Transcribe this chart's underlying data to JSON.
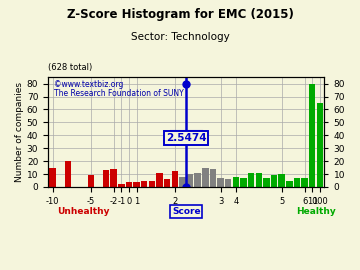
{
  "title": "Z-Score Histogram for EMC (2015)",
  "subtitle": "Sector: Technology",
  "xlabel_score": "Score",
  "ylabel": "Number of companies",
  "total": "628 total",
  "zscore_label": "2.5474",
  "zscore_idx": 17.5,
  "yticks": [
    0,
    10,
    20,
    30,
    40,
    50,
    60,
    70,
    80
  ],
  "xtick_labels": [
    "-10",
    "-5",
    "-2",
    "-1",
    "0",
    "1",
    "2",
    "3",
    "4",
    "5",
    "6",
    "10",
    "100"
  ],
  "unhealthy_label": "Unhealthy",
  "healthy_label": "Healthy",
  "bars": [
    {
      "idx": 0,
      "height": 15,
      "color": "#cc0000"
    },
    {
      "idx": 1,
      "height": 0,
      "color": "#cc0000"
    },
    {
      "idx": 2,
      "height": 20,
      "color": "#cc0000"
    },
    {
      "idx": 3,
      "height": 0,
      "color": "#cc0000"
    },
    {
      "idx": 4,
      "height": 0,
      "color": "#cc0000"
    },
    {
      "idx": 5,
      "height": 9,
      "color": "#cc0000"
    },
    {
      "idx": 6,
      "height": 0,
      "color": "#cc0000"
    },
    {
      "idx": 7,
      "height": 13,
      "color": "#cc0000"
    },
    {
      "idx": 8,
      "height": 14,
      "color": "#cc0000"
    },
    {
      "idx": 9,
      "height": 2,
      "color": "#cc0000"
    },
    {
      "idx": 10,
      "height": 4,
      "color": "#cc0000"
    },
    {
      "idx": 11,
      "height": 4,
      "color": "#cc0000"
    },
    {
      "idx": 12,
      "height": 5,
      "color": "#cc0000"
    },
    {
      "idx": 13,
      "height": 5,
      "color": "#cc0000"
    },
    {
      "idx": 14,
      "height": 11,
      "color": "#cc0000"
    },
    {
      "idx": 15,
      "height": 6,
      "color": "#cc0000"
    },
    {
      "idx": 16,
      "height": 12,
      "color": "#cc0000"
    },
    {
      "idx": 17,
      "height": 8,
      "color": "#808080"
    },
    {
      "idx": 18,
      "height": 10,
      "color": "#808080"
    },
    {
      "idx": 19,
      "height": 11,
      "color": "#808080"
    },
    {
      "idx": 20,
      "height": 15,
      "color": "#808080"
    },
    {
      "idx": 21,
      "height": 14,
      "color": "#808080"
    },
    {
      "idx": 22,
      "height": 7,
      "color": "#808080"
    },
    {
      "idx": 23,
      "height": 6,
      "color": "#808080"
    },
    {
      "idx": 24,
      "height": 8,
      "color": "#00aa00"
    },
    {
      "idx": 25,
      "height": 7,
      "color": "#00aa00"
    },
    {
      "idx": 26,
      "height": 11,
      "color": "#00aa00"
    },
    {
      "idx": 27,
      "height": 11,
      "color": "#00aa00"
    },
    {
      "idx": 28,
      "height": 7,
      "color": "#00aa00"
    },
    {
      "idx": 29,
      "height": 9,
      "color": "#00aa00"
    },
    {
      "idx": 30,
      "height": 10,
      "color": "#00aa00"
    },
    {
      "idx": 31,
      "height": 5,
      "color": "#00aa00"
    },
    {
      "idx": 32,
      "height": 7,
      "color": "#00aa00"
    },
    {
      "idx": 33,
      "height": 7,
      "color": "#00aa00"
    },
    {
      "idx": 34,
      "height": 80,
      "color": "#00aa00"
    },
    {
      "idx": 35,
      "height": 65,
      "color": "#00aa00"
    }
  ],
  "xtick_indices": [
    0,
    5,
    8,
    9,
    10,
    11,
    16,
    22,
    24,
    30,
    33,
    34,
    35
  ],
  "bg_color": "#f5f5dc",
  "grid_color": "#aaaaaa",
  "zscore_color": "#0000cc",
  "unhealthy_color": "#cc0000",
  "healthy_color": "#00aa00",
  "watermark1": "©www.textbiz.org",
  "watermark2": "The Research Foundation of SUNY"
}
